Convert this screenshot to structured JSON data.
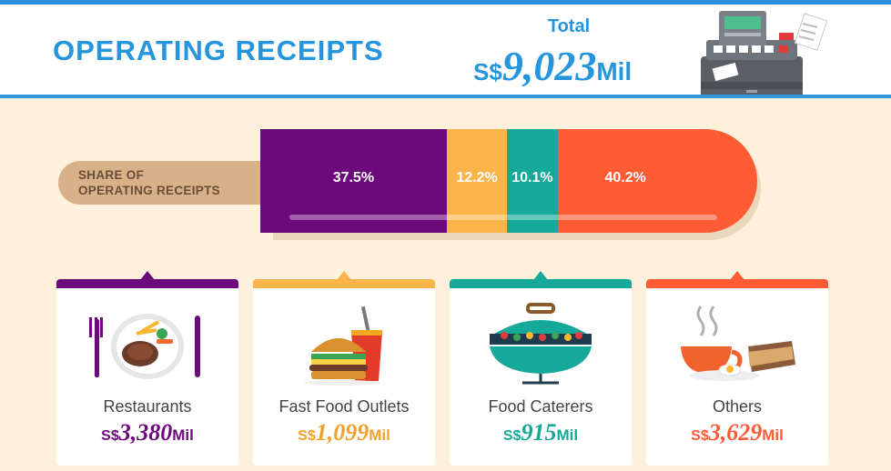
{
  "header": {
    "title": "OPERATING RECEIPTS",
    "total_label": "Total",
    "total_currency": "S$",
    "total_value": "9,023",
    "total_unit": "Mil"
  },
  "share_label_line1": "SHARE OF",
  "share_label_line2": "OPERATING RECEIPTS",
  "colors": {
    "header_blue": "#2596dd",
    "restaurants": "#6c0a7b",
    "fast_food": "#fbb44a",
    "food_caterers": "#16a899",
    "others": "#ff5b34",
    "panel_bg": "#fdf1dc"
  },
  "chart_data": {
    "type": "bar",
    "orientation": "horizontal-stacked",
    "title": "OPERATING RECEIPTS",
    "total": {
      "label": "Total",
      "value": 9023,
      "unit": "S$ Mil"
    },
    "categories": [
      "Restaurants",
      "Fast Food Outlets",
      "Food Caterers",
      "Others"
    ],
    "values": [
      37.5,
      12.2,
      10.1,
      40.2
    ],
    "value_labels": [
      "37.5%",
      "12.2%",
      "10.1%",
      "40.2%"
    ],
    "amounts": [
      3380,
      1099,
      915,
      3629
    ],
    "amount_labels": [
      "3,380",
      "1,099",
      "915",
      "3,629"
    ],
    "currency": "S$",
    "unit": "Mil",
    "colors": [
      "#6c0a7b",
      "#fbb44a",
      "#16a899",
      "#ff5b34"
    ],
    "xlabel": "",
    "ylabel": "",
    "grid": false,
    "legend": "none"
  },
  "icons": [
    "cash-register-icon",
    "restaurant-plate-icon",
    "burger-fries-icon",
    "grill-icon",
    "coffee-sandwich-icon"
  ]
}
